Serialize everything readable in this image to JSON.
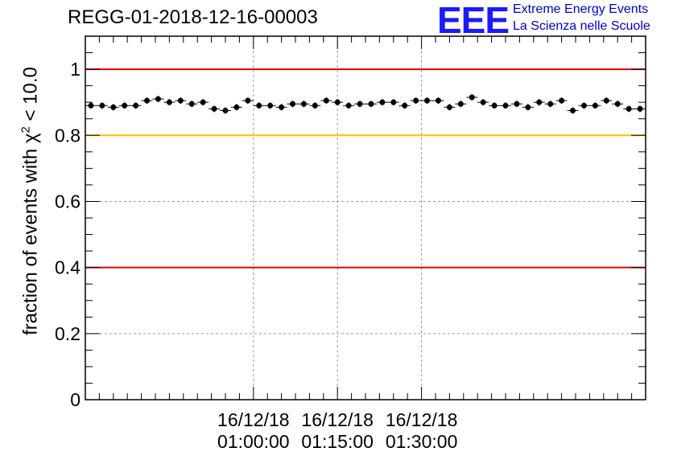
{
  "title": "REGG-01-2018-12-16-00003",
  "logo": {
    "mark": "EEE",
    "line1": "Extreme Energy Events",
    "line2": "La Scienza nelle Scuole"
  },
  "ylabel": {
    "pre": "fraction of events with ",
    "chi": "χ",
    "sup": "2",
    "post": " < 10.0"
  },
  "chart_data": {
    "type": "scatter",
    "title": "REGG-01-2018-12-16-00003",
    "xlabel": "",
    "ylabel": "fraction of events with χ² < 10.0",
    "ylim": [
      0,
      1.1
    ],
    "xlim_minutes_after_0030": [
      0,
      100
    ],
    "yticks": [
      0,
      0.2,
      0.4,
      0.6,
      0.8,
      1
    ],
    "ytick_labels": [
      "0",
      "0.2",
      "0.4",
      "0.6",
      "0.8",
      "1"
    ],
    "xticks_minutes_after_0030": [
      30,
      45,
      60
    ],
    "xtick_labels": [
      {
        "date": "16/12/18",
        "time": "01:00:00"
      },
      {
        "date": "16/12/18",
        "time": "01:15:00"
      },
      {
        "date": "16/12/18",
        "time": "01:30:00"
      }
    ],
    "grid": true,
    "reference_lines": [
      {
        "y": 1.0,
        "color": "#e00000"
      },
      {
        "y": 0.8,
        "color": "#ffc000"
      },
      {
        "y": 0.4,
        "color": "#e00000"
      }
    ],
    "point_color": "#000000",
    "series": [
      {
        "name": "fraction",
        "x": [
          1,
          3,
          5,
          7,
          9,
          11,
          13,
          15,
          17,
          19,
          21,
          23,
          25,
          27,
          29,
          31,
          33,
          35,
          37,
          39,
          41,
          43,
          45,
          47,
          49,
          51,
          53,
          55,
          57,
          59,
          61,
          63,
          65,
          67,
          69,
          71,
          73,
          75,
          77,
          79,
          81,
          83,
          85,
          87,
          89,
          91,
          93,
          95,
          97,
          99
        ],
        "y": [
          0.89,
          0.89,
          0.885,
          0.89,
          0.89,
          0.905,
          0.91,
          0.9,
          0.905,
          0.895,
          0.9,
          0.88,
          0.875,
          0.885,
          0.905,
          0.89,
          0.89,
          0.885,
          0.895,
          0.895,
          0.89,
          0.905,
          0.9,
          0.89,
          0.895,
          0.895,
          0.9,
          0.9,
          0.89,
          0.905,
          0.905,
          0.905,
          0.885,
          0.895,
          0.915,
          0.9,
          0.89,
          0.89,
          0.895,
          0.885,
          0.9,
          0.895,
          0.905,
          0.875,
          0.89,
          0.89,
          0.905,
          0.895,
          0.88,
          0.88
        ],
        "yerr": 0.01
      }
    ]
  }
}
